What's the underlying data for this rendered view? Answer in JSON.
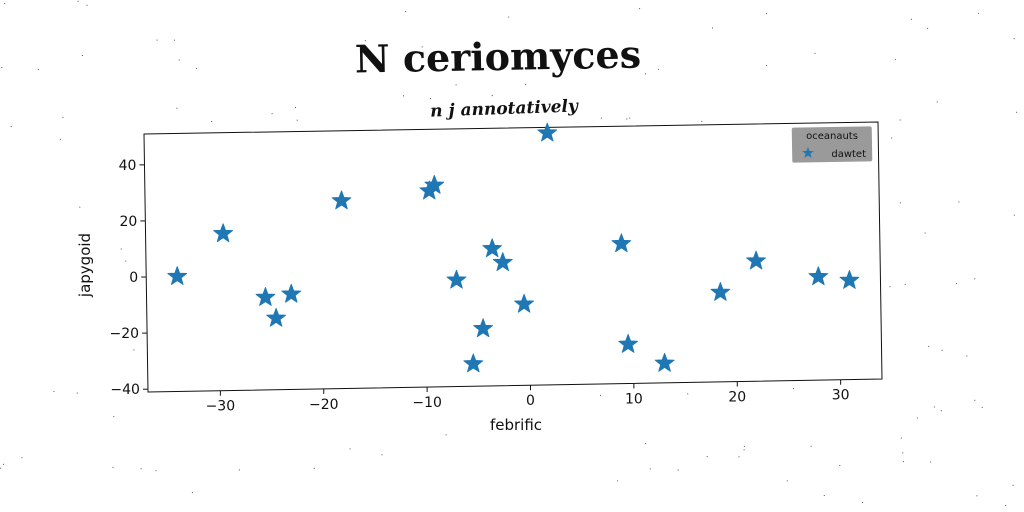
{
  "chart_data": {
    "type": "scatter",
    "title": "N ceriomyces",
    "subtitle": "n j annotatively",
    "xlabel": "febrific",
    "ylabel": "japygoid",
    "xlim": [
      -37,
      34
    ],
    "ylim": [
      -41,
      51
    ],
    "xticks": [
      -30,
      -20,
      -10,
      0,
      10,
      20,
      30
    ],
    "yticks": [
      -40,
      -20,
      0,
      20,
      40
    ],
    "grid": false,
    "legend": {
      "title": "oceanauts",
      "placement": "top-right"
    },
    "marker_color": "#1f77b4",
    "marker": "star",
    "series": [
      {
        "name": "dawtet",
        "points": [
          [
            -34,
            0
          ],
          [
            -29.5,
            15
          ],
          [
            -25.5,
            -8
          ],
          [
            -24.5,
            -15.5
          ],
          [
            -23,
            -7
          ],
          [
            -18,
            26
          ],
          [
            -9.5,
            29
          ],
          [
            -9,
            31
          ],
          [
            -7,
            -3
          ],
          [
            -5.5,
            -33
          ],
          [
            -4.5,
            -20.5
          ],
          [
            -3.5,
            8
          ],
          [
            -2.5,
            3
          ],
          [
            -0.5,
            -12
          ],
          [
            2,
            49
          ],
          [
            9,
            9
          ],
          [
            9.5,
            -27
          ],
          [
            13,
            -34
          ],
          [
            18.5,
            -9
          ],
          [
            22,
            2
          ],
          [
            28,
            -4
          ],
          [
            31,
            -5.5
          ]
        ]
      }
    ]
  }
}
